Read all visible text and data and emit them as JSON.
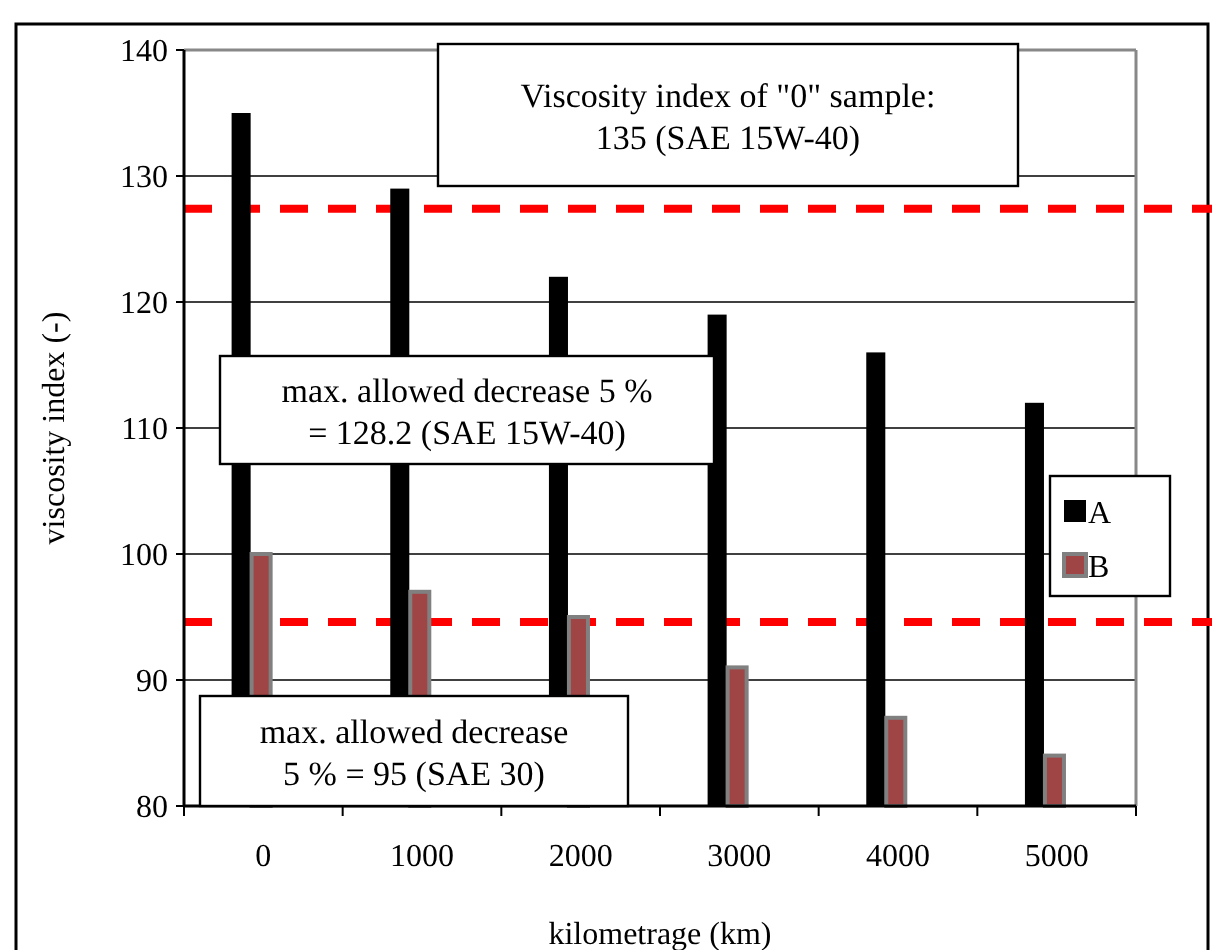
{
  "chart_data": {
    "type": "bar",
    "xlabel": "kilometrage (km)",
    "ylabel": "viscosity index (-)",
    "categories": [
      "0",
      "1000",
      "2000",
      "3000",
      "4000",
      "5000"
    ],
    "series": [
      {
        "name": "A",
        "color": "#000000",
        "values": [
          135,
          129,
          122,
          119,
          116,
          112
        ]
      },
      {
        "name": "B",
        "color": "#a04545",
        "values": [
          100,
          97,
          95,
          91,
          87,
          84
        ]
      }
    ],
    "ylim": [
      80,
      140
    ],
    "yticks": [
      80,
      90,
      100,
      110,
      120,
      130,
      140
    ],
    "grid": "y",
    "legend": "right",
    "ref_lines": [
      {
        "axis": "y",
        "value": 127.4,
        "color": "#ff0000",
        "line_style": "dashed"
      },
      {
        "axis": "y",
        "value": 94.6,
        "color": "#ff0000",
        "line_style": "dashed"
      }
    ],
    "annotations": [
      "Viscosity index of \"0\" sample:\n135 (SAE 15W-40)",
      "max. allowed decrease 5 %\n= 128.2 (SAE 15W-40)",
      "max. allowed decrease\n5 % = 95 (SAE 30)"
    ]
  }
}
